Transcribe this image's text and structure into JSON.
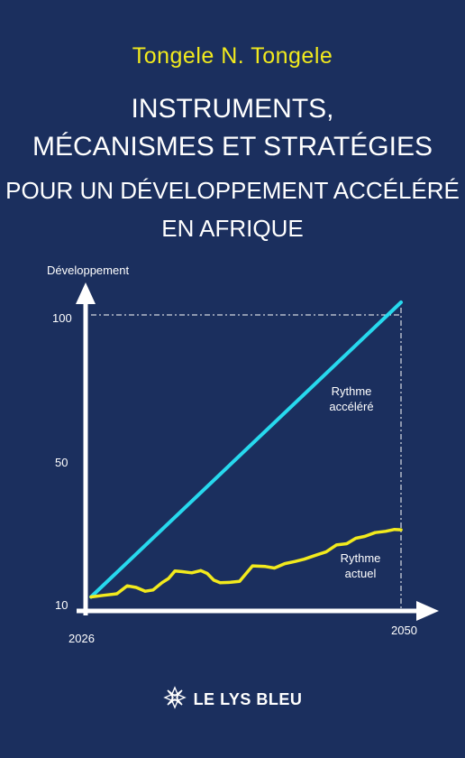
{
  "author": "Tongele N. Tongele",
  "title": {
    "line1": "INSTRUMENTS,",
    "line2": "MÉCANISMES ET STRATÉGIES",
    "line3": "POUR UN DÉVELOPPEMENT ACCÉLÉRÉ",
    "line4": "EN AFRIQUE"
  },
  "publisher": "LE LYS BLEU",
  "colors": {
    "background": "#1b2f5e",
    "author": "#f2ea1d",
    "accelerated_line": "#27d9ee",
    "current_line": "#f2ea1d",
    "axes": "#ffffff"
  },
  "chart_data": {
    "type": "line",
    "ylabel": "Développement",
    "y_ticks": [
      "100",
      "50",
      "10"
    ],
    "x_ticks": [
      "2026",
      "2050"
    ],
    "xlim": [
      2026,
      2050
    ],
    "ylim": [
      10,
      100
    ],
    "series": [
      {
        "name": "Rythme accéléré",
        "label_lines": [
          "Rythme",
          "accéléré"
        ],
        "x": [
          2026,
          2050
        ],
        "y": [
          11,
          104
        ]
      },
      {
        "name": "Rythme actuel",
        "label_lines": [
          "Rythme",
          "actuel"
        ],
        "x": [
          2026,
          2027,
          2028,
          2028.8,
          2029.5,
          2030.2,
          2030.8,
          2031.5,
          2032,
          2032.5,
          2033,
          2033.8,
          2034.5,
          2035,
          2035.5,
          2036,
          2036.8,
          2037.5,
          2038.5,
          2039.5,
          2040.2,
          2041,
          2041.8,
          2042.5,
          2043.5,
          2044.2,
          2045,
          2045.8,
          2046.5,
          2047.2,
          2048,
          2048.8,
          2049.5,
          2050
        ],
        "y": [
          11,
          11.5,
          12,
          14.5,
          14,
          12.8,
          13.2,
          15.5,
          16.8,
          19.2,
          19,
          18.6,
          19.3,
          18.4,
          16.3,
          15.5,
          15.6,
          15.9,
          20.8,
          20.6,
          20.1,
          21.5,
          22.2,
          22.9,
          24.3,
          25.2,
          27.4,
          27.8,
          29.5,
          30.1,
          31.3,
          31.7,
          32.3,
          32.2
        ]
      }
    ],
    "guides": [
      "y=100 to x=2050",
      "x=2050 down to axis"
    ]
  }
}
